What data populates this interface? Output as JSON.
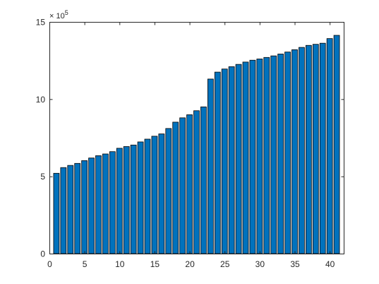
{
  "chart_data": {
    "type": "bar",
    "x": [
      1,
      2,
      3,
      4,
      5,
      6,
      7,
      8,
      9,
      10,
      11,
      12,
      13,
      14,
      15,
      16,
      17,
      18,
      19,
      20,
      21,
      22,
      23,
      24,
      25,
      26,
      27,
      28,
      29,
      30,
      31,
      32,
      33,
      34,
      35,
      36,
      37,
      38,
      39,
      40,
      41
    ],
    "values": [
      520000,
      557000,
      571000,
      584000,
      602000,
      619000,
      634000,
      645000,
      660000,
      682000,
      693000,
      703000,
      723000,
      741000,
      760000,
      775000,
      810000,
      851000,
      879000,
      899000,
      925000,
      950000,
      1130000,
      1175000,
      1195000,
      1210000,
      1225000,
      1240000,
      1252000,
      1260000,
      1270000,
      1280000,
      1292000,
      1305000,
      1320000,
      1335000,
      1348000,
      1355000,
      1362000,
      1392000,
      1413000
    ],
    "xlim": [
      0,
      42
    ],
    "ylim": [
      0,
      1500000
    ],
    "x_ticks": [
      0,
      5,
      10,
      15,
      20,
      25,
      30,
      35,
      40
    ],
    "x_tick_labels": [
      "0",
      "5",
      "10",
      "15",
      "20",
      "25",
      "30",
      "35",
      "40"
    ],
    "y_ticks": [
      0,
      500000,
      1000000,
      1500000
    ],
    "y_tick_labels": [
      "0",
      "5",
      "10",
      "15"
    ],
    "y_exponent_base": "× 10",
    "y_exponent_power": "5",
    "bar_color": "#0072BD",
    "edge_color": "#000000",
    "grid": false,
    "title": "",
    "xlabel": "",
    "ylabel": ""
  }
}
